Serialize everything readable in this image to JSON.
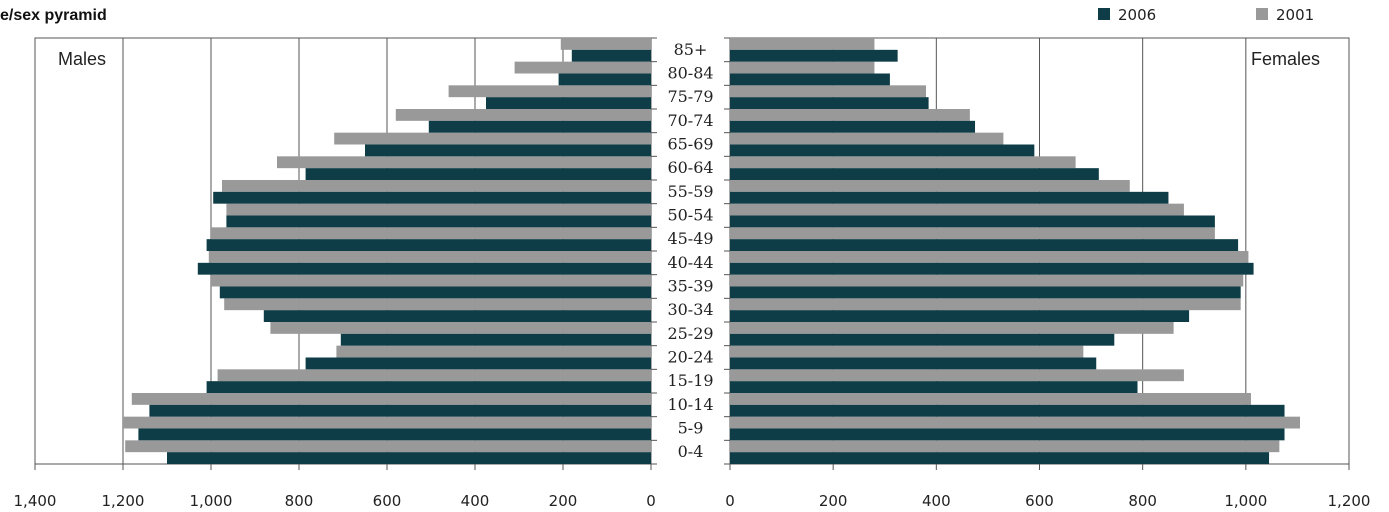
{
  "chart_data": {
    "type": "bar",
    "orientation": "horizontal-pyramid",
    "title": "e/sex pyramid",
    "left_panel_label": "Males",
    "right_panel_label": "Females",
    "categories": [
      "0-4",
      "5-9",
      "10-14",
      "15-19",
      "20-24",
      "25-29",
      "30-34",
      "35-39",
      "40-44",
      "45-49",
      "50-54",
      "55-59",
      "60-64",
      "65-69",
      "70-74",
      "75-79",
      "80-84",
      "85+"
    ],
    "age_labels_shown": [
      "0-4",
      "5-9",
      "10-14",
      "15-19",
      "20-24",
      "25-29",
      "30-34",
      "35-39",
      "40-44",
      "45-49",
      "50-54",
      "55-59",
      "60-64",
      "65-69",
      "70-74",
      "75-79",
      "80-84",
      "85+"
    ],
    "males_axis": {
      "ticks": [
        "1,400",
        "1,200",
        "1,000",
        "800",
        "600",
        "400",
        "200",
        "0"
      ],
      "xlim": [
        0,
        1400
      ]
    },
    "females_axis": {
      "ticks": [
        "0",
        "200",
        "400",
        "600",
        "800",
        "1,000",
        "1,200"
      ],
      "xlim": [
        0,
        1200
      ]
    },
    "legend": {
      "placement": "top-right"
    },
    "grid": true,
    "series": [
      {
        "name": "2006",
        "color": "#0e3d47",
        "males": [
          1100,
          1165,
          1140,
          1010,
          785,
          705,
          880,
          980,
          1030,
          1010,
          965,
          995,
          785,
          650,
          505,
          375,
          210,
          180
        ],
        "females": [
          1045,
          1075,
          1075,
          790,
          710,
          745,
          890,
          990,
          1015,
          985,
          940,
          850,
          715,
          590,
          475,
          385,
          310,
          325
        ]
      },
      {
        "name": "2001",
        "color": "#999999",
        "males": [
          1195,
          1200,
          1180,
          985,
          715,
          865,
          970,
          1000,
          1005,
          1000,
          965,
          975,
          850,
          720,
          580,
          460,
          310,
          205
        ],
        "females": [
          1065,
          1105,
          1010,
          880,
          685,
          860,
          990,
          995,
          1005,
          940,
          880,
          775,
          670,
          530,
          465,
          380,
          280,
          280
        ]
      }
    ]
  }
}
